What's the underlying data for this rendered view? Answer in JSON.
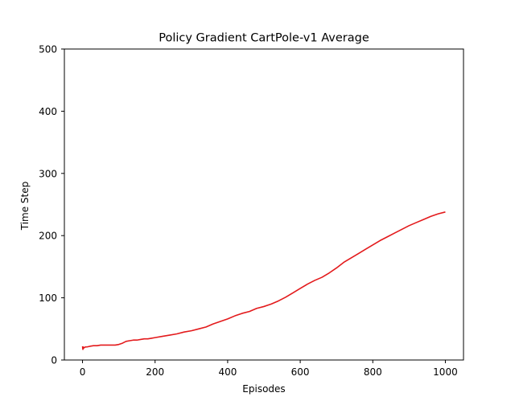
{
  "chart_data": {
    "type": "line",
    "title": "Policy Gradient CartPole-v1 Average",
    "xlabel": "Episodes",
    "ylabel": "Time Step",
    "xlim": [
      -50,
      1050
    ],
    "ylim": [
      0,
      500
    ],
    "xticks": [
      0,
      200,
      400,
      600,
      800,
      1000
    ],
    "yticks": [
      0,
      100,
      200,
      300,
      400,
      500
    ],
    "grid": false,
    "series": [
      {
        "color": "#e31a1c",
        "x": [
          0,
          1,
          2,
          3,
          5,
          8,
          12,
          20,
          30,
          40,
          50,
          60,
          70,
          80,
          90,
          100,
          110,
          120,
          130,
          140,
          150,
          160,
          170,
          180,
          190,
          200,
          220,
          240,
          260,
          280,
          300,
          320,
          340,
          360,
          380,
          400,
          420,
          440,
          460,
          480,
          500,
          520,
          540,
          560,
          580,
          600,
          620,
          640,
          660,
          680,
          700,
          720,
          740,
          760,
          780,
          800,
          820,
          840,
          860,
          880,
          900,
          920,
          940,
          960,
          980,
          1000
        ],
        "y": [
          22,
          17,
          21,
          19,
          20,
          21,
          21,
          22,
          23,
          23,
          24,
          24,
          24,
          24,
          24,
          25,
          27,
          30,
          31,
          32,
          32,
          33,
          34,
          34,
          35,
          36,
          38,
          40,
          42,
          45,
          47,
          50,
          53,
          58,
          62,
          66,
          71,
          75,
          78,
          83,
          86,
          90,
          95,
          101,
          108,
          115,
          122,
          128,
          133,
          140,
          148,
          157,
          164,
          171,
          178,
          185,
          192,
          198,
          204,
          210,
          216,
          221,
          226,
          231,
          235,
          238
        ]
      }
    ]
  }
}
